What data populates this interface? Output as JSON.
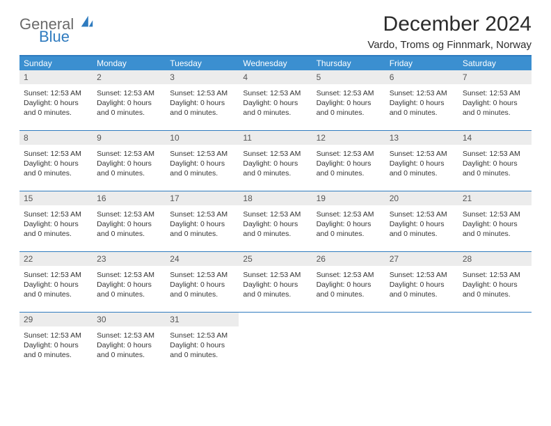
{
  "logo": {
    "general": "General",
    "blue": "Blue"
  },
  "title": "December 2024",
  "subtitle": "Vardo, Troms og Finnmark, Norway",
  "colors": {
    "brand_blue": "#2f7bbf",
    "header_bg": "#3b8fd0",
    "daynum_bg": "#ececec",
    "text_gray": "#6a6a6a",
    "body_text": "#333333",
    "white": "#ffffff"
  },
  "days_of_week": [
    "Sunday",
    "Monday",
    "Tuesday",
    "Wednesday",
    "Thursday",
    "Friday",
    "Saturday"
  ],
  "grid": {
    "columns": 7,
    "rows": 5,
    "start_offset": 0,
    "days_in_month": 31
  },
  "cell_template": {
    "sunset_label": "Sunset:",
    "sunset_time": "12:53 AM",
    "daylight_label": "Daylight:",
    "daylight_value": "0 hours and 0 minutes."
  },
  "cells": [
    {
      "n": 1
    },
    {
      "n": 2
    },
    {
      "n": 3
    },
    {
      "n": 4
    },
    {
      "n": 5
    },
    {
      "n": 6
    },
    {
      "n": 7
    },
    {
      "n": 8
    },
    {
      "n": 9
    },
    {
      "n": 10
    },
    {
      "n": 11
    },
    {
      "n": 12
    },
    {
      "n": 13
    },
    {
      "n": 14
    },
    {
      "n": 15
    },
    {
      "n": 16
    },
    {
      "n": 17
    },
    {
      "n": 18
    },
    {
      "n": 19
    },
    {
      "n": 20
    },
    {
      "n": 21
    },
    {
      "n": 22
    },
    {
      "n": 23
    },
    {
      "n": 24
    },
    {
      "n": 25
    },
    {
      "n": 26
    },
    {
      "n": 27
    },
    {
      "n": 28
    },
    {
      "n": 29
    },
    {
      "n": 30
    },
    {
      "n": 31
    },
    {
      "n": null
    },
    {
      "n": null
    },
    {
      "n": null
    },
    {
      "n": null
    }
  ]
}
